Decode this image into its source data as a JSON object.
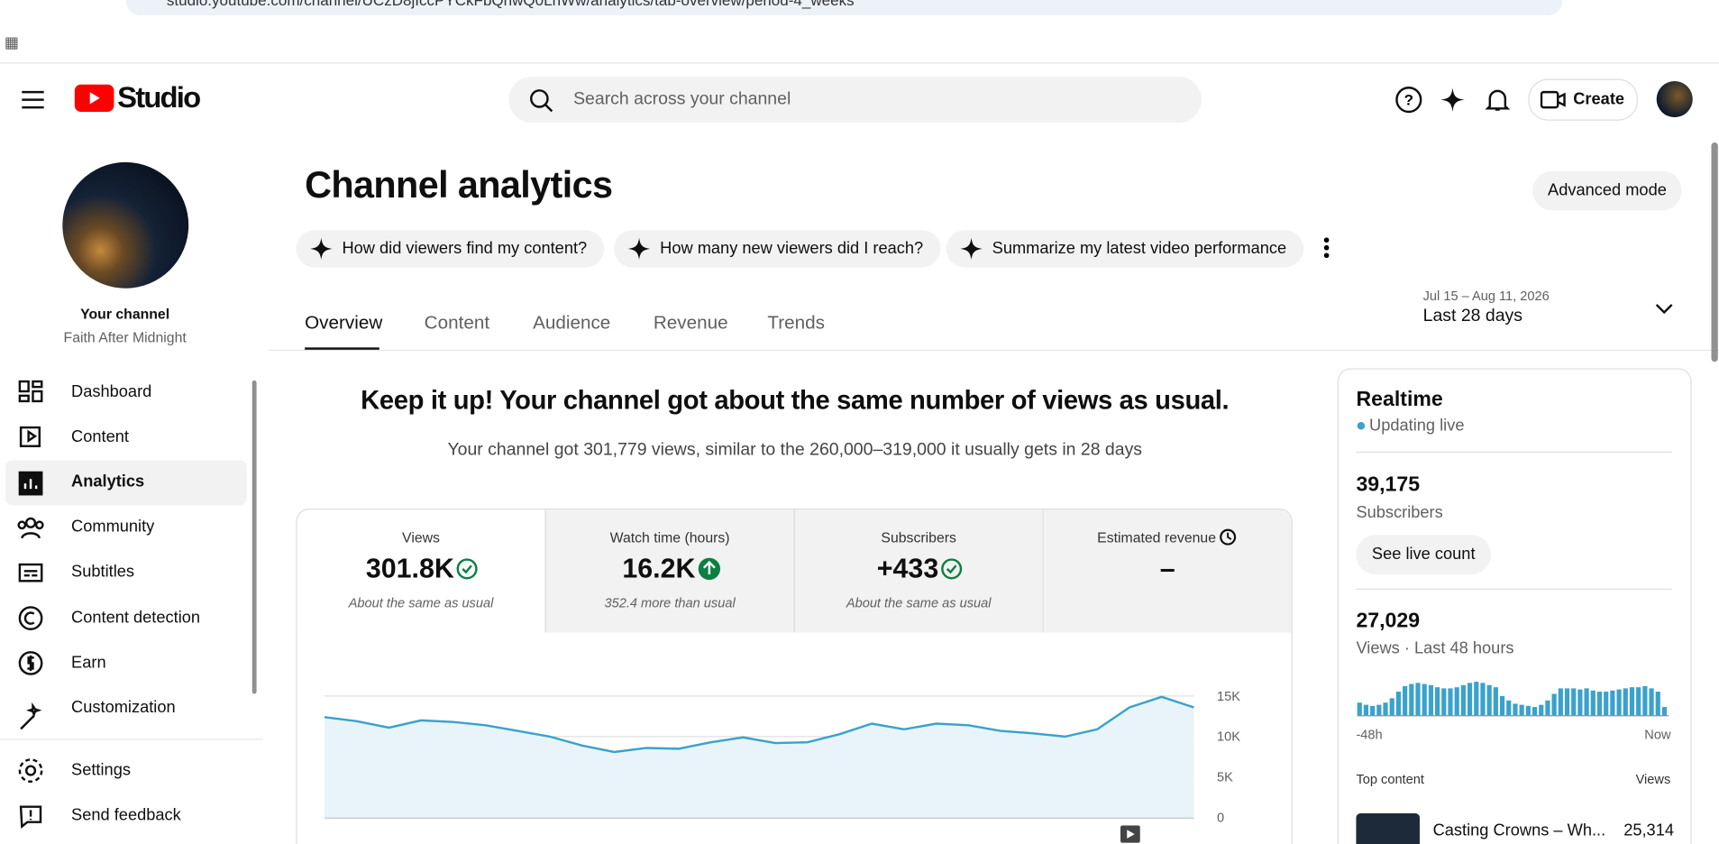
{
  "browser": {
    "url": "studio.youtube.com/channel/UCzD8jIccPYCkFbQnwQ0LnWw/analytics/tab-overview/period-4_weeks"
  },
  "header": {
    "logo": "Studio",
    "search_placeholder": "Search across your channel",
    "create": "Create"
  },
  "sidebar": {
    "channel_label": "Your channel",
    "channel_name": "Faith After Midnight",
    "nav": [
      "Dashboard",
      "Content",
      "Analytics",
      "Community",
      "Subtitles",
      "Content detection",
      "Earn",
      "Customization"
    ],
    "footer": [
      "Settings",
      "Send feedback"
    ]
  },
  "main": {
    "title": "Channel analytics",
    "advanced": "Advanced mode",
    "prompts": [
      "How did viewers find my content?",
      "How many new viewers did I reach?",
      "Summarize my latest video performance"
    ],
    "tabs": [
      "Overview",
      "Content",
      "Audience",
      "Revenue",
      "Trends"
    ],
    "date_range": "Jul 15 – Aug 11, 2026",
    "period": "Last 28 days",
    "headline": "Keep it up! Your channel got about the same number of views as usual.",
    "summary": "Your channel got 301,779 views, similar to the 260,000–319,000 it usually gets in 28 days",
    "metrics": [
      {
        "label": "Views",
        "value": "301.8K",
        "note": "About the same as usual"
      },
      {
        "label": "Watch time (hours)",
        "value": "16.2K",
        "note": "352.4 more than usual"
      },
      {
        "label": "Subscribers",
        "value": "+433",
        "note": "About the same as usual"
      },
      {
        "label": "Estimated revenue",
        "value": "–"
      }
    ]
  },
  "chart_data": {
    "type": "line",
    "color": "#3aa2cc",
    "values": [
      12400,
      11900,
      11100,
      12000,
      11800,
      11400,
      10700,
      10000,
      8900,
      8100,
      8600,
      8500,
      9300,
      9900,
      9200,
      9300,
      10300,
      11600,
      10900,
      11600,
      11400,
      10700,
      10400,
      10000,
      10900,
      13600,
      14900,
      13600
    ],
    "ylim": [
      0,
      15000
    ],
    "yticks": [
      0,
      {
        "value": 5000,
        "label": "5K"
      },
      {
        "value": 10000,
        "label": "10K"
      },
      {
        "value": 15000,
        "label": "15K"
      }
    ],
    "grid": true
  },
  "realtime": {
    "title": "Realtime",
    "status": "Updating live",
    "subscribers": "39,175",
    "subscribers_label": "Subscribers",
    "live_button": "See live count",
    "views": "27,029",
    "views_label": "Views · Last 48 hours",
    "chart": {
      "type": "bar",
      "color": "#3aa2cc",
      "ylim": [
        0,
        640
      ],
      "values": [
        240,
        200,
        180,
        200,
        240,
        320,
        440,
        540,
        580,
        600,
        580,
        560,
        520,
        500,
        500,
        520,
        560,
        600,
        620,
        600,
        560,
        520,
        360,
        280,
        220,
        200,
        180,
        160,
        200,
        280,
        400,
        500,
        500,
        500,
        480,
        500,
        460,
        440,
        440,
        460,
        480,
        500,
        520,
        520,
        540,
        500,
        440,
        160
      ],
      "x_start": "-48h",
      "x_end": "Now"
    },
    "top_content": "Top content",
    "top_views_label": "Views",
    "top_title": "Casting Crowns – Wh...",
    "top_views": "25,314"
  }
}
